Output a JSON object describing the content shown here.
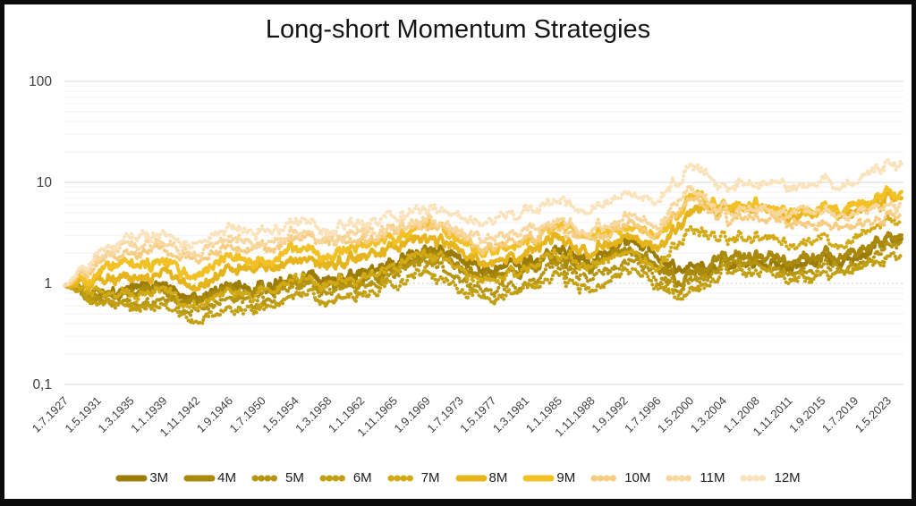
{
  "title": "Long-short Momentum Strategies",
  "chart_data": {
    "type": "line",
    "title": "Long-short Momentum Strategies",
    "y_scale": "log",
    "ylim": [
      0.1,
      100
    ],
    "y_tick_labels": [
      "100",
      "10",
      "1",
      "0,1"
    ],
    "y_tick_values": [
      100,
      10,
      1,
      0.1
    ],
    "grid": "on",
    "legend_position": "bottom",
    "x_tick_labels": [
      "1.7.1927",
      "1.5.1931",
      "1.3.1935",
      "1.1.1939",
      "1.11.1942",
      "1.9.1946",
      "1.7.1950",
      "1.5.1954",
      "1.3.1958",
      "1.1.1962",
      "1.11.1965",
      "1.9.1969",
      "1.7.1973",
      "1.5.1977",
      "1.3.1981",
      "1.1.1985",
      "1.11.1988",
      "1.9.1992",
      "1.7.1996",
      "1.5.2000",
      "1.3.2004",
      "1.1.2008",
      "1.11.2011",
      "1.9.2015",
      "1.7.2019",
      "1.5.2023"
    ],
    "anchor_years": [
      1927.5,
      1931.3,
      1935.2,
      1939.0,
      1942.8,
      1946.7,
      1950.5,
      1954.3,
      1958.2,
      1962.0,
      1965.8,
      1969.7,
      1973.5,
      1977.3,
      1981.2,
      1985.0,
      1988.8,
      1992.7,
      1996.5,
      2000.3,
      2004.2,
      2008.0,
      2011.8,
      2015.7,
      2019.5,
      2023.3,
      2025.0
    ],
    "series": [
      {
        "name": "3M",
        "color": "#9c7c08",
        "style": "solid",
        "values": [
          0.95,
          0.78,
          0.85,
          0.9,
          0.82,
          0.88,
          0.95,
          1.1,
          1.05,
          1.2,
          1.5,
          2.1,
          1.6,
          1.3,
          1.6,
          2.1,
          1.75,
          2.6,
          1.9,
          1.3,
          1.6,
          1.8,
          1.6,
          1.7,
          1.9,
          2.6,
          2.7
        ]
      },
      {
        "name": "4M",
        "color": "#a98a0d",
        "style": "solid",
        "values": [
          0.95,
          0.72,
          0.78,
          0.82,
          0.72,
          0.8,
          0.88,
          1.05,
          0.98,
          1.1,
          1.35,
          1.85,
          1.3,
          1.1,
          1.35,
          1.75,
          1.5,
          2.0,
          1.5,
          1.1,
          1.9,
          2.1,
          1.8,
          1.9,
          2.1,
          2.9,
          3.0
        ]
      },
      {
        "name": "5M",
        "color": "#b59511",
        "style": "dotted",
        "values": [
          0.95,
          0.68,
          0.62,
          0.68,
          0.58,
          0.64,
          0.72,
          0.9,
          0.82,
          0.95,
          1.15,
          1.55,
          1.0,
          0.85,
          1.05,
          1.35,
          1.15,
          1.55,
          1.2,
          0.95,
          1.55,
          1.7,
          1.45,
          1.5,
          1.65,
          2.2,
          2.3
        ]
      },
      {
        "name": "6M",
        "color": "#c3a013",
        "style": "dotted",
        "values": [
          0.95,
          0.65,
          0.55,
          0.58,
          0.46,
          0.52,
          0.58,
          0.75,
          0.68,
          0.8,
          0.98,
          1.3,
          0.82,
          0.7,
          0.88,
          1.1,
          0.92,
          1.2,
          0.95,
          0.8,
          1.3,
          1.45,
          1.2,
          1.25,
          1.4,
          1.8,
          1.9
        ]
      },
      {
        "name": "7M",
        "color": "#d2aa15",
        "style": "dotted",
        "values": [
          0.95,
          0.8,
          0.72,
          0.78,
          0.65,
          0.75,
          0.85,
          1.1,
          1.0,
          1.15,
          1.45,
          1.95,
          1.25,
          1.05,
          1.4,
          1.85,
          1.55,
          1.95,
          1.6,
          3.3,
          2.9,
          3.1,
          2.6,
          2.7,
          2.9,
          3.9,
          4.0
        ]
      },
      {
        "name": "8M",
        "color": "#e6b41c",
        "style": "solid",
        "values": [
          0.95,
          1.05,
          1.1,
          1.2,
          1.05,
          1.25,
          1.4,
          1.7,
          1.6,
          1.8,
          2.2,
          2.9,
          1.9,
          1.55,
          2.0,
          2.6,
          2.2,
          2.8,
          2.4,
          4.8,
          5.5,
          6.0,
          5.0,
          5.2,
          5.4,
          6.6,
          6.8
        ]
      },
      {
        "name": "9M",
        "color": "#f2c126",
        "style": "solid",
        "values": [
          0.95,
          1.25,
          1.45,
          1.55,
          1.35,
          1.6,
          1.75,
          2.15,
          2.0,
          2.25,
          2.7,
          3.8,
          2.4,
          1.95,
          2.6,
          3.4,
          2.95,
          3.5,
          3.1,
          6.8,
          6.2,
          6.6,
          5.6,
          5.8,
          6.0,
          7.8,
          8.0
        ]
      },
      {
        "name": "10M",
        "color": "#f6cc80",
        "style": "dotted",
        "values": [
          0.95,
          1.5,
          1.9,
          2.1,
          1.85,
          2.2,
          2.3,
          2.75,
          2.6,
          2.85,
          3.2,
          3.9,
          2.7,
          2.15,
          2.75,
          3.3,
          2.85,
          3.6,
          3.3,
          6.4,
          4.6,
          4.9,
          4.3,
          4.0,
          3.9,
          4.7,
          4.6
        ]
      },
      {
        "name": "11M",
        "color": "#f8d79e",
        "style": "dotted",
        "values": [
          0.95,
          1.7,
          2.2,
          2.45,
          2.15,
          2.6,
          2.55,
          3.05,
          2.9,
          3.1,
          3.5,
          4.4,
          3.1,
          2.55,
          3.3,
          4.0,
          3.45,
          4.3,
          3.95,
          7.8,
          5.4,
          5.9,
          5.5,
          5.2,
          5.0,
          6.0,
          5.8
        ]
      },
      {
        "name": "12M",
        "color": "#fae2bb",
        "style": "dotted",
        "values": [
          0.95,
          2.0,
          2.6,
          3.0,
          2.7,
          3.3,
          3.2,
          3.9,
          3.6,
          3.9,
          4.4,
          5.6,
          4.3,
          4.1,
          5.2,
          6.3,
          5.6,
          7.2,
          6.6,
          13.0,
          9.5,
          10.5,
          10.0,
          10.0,
          11.0,
          14.5,
          15.0
        ]
      }
    ],
    "colors": {
      "major_gridline": "#d9d9d9",
      "minor_gridline": "#f2f2f2",
      "unit_gridline_dotted": "#c9c9c9",
      "axis_text": "#3f3f3f",
      "title_text": "#141414"
    }
  }
}
